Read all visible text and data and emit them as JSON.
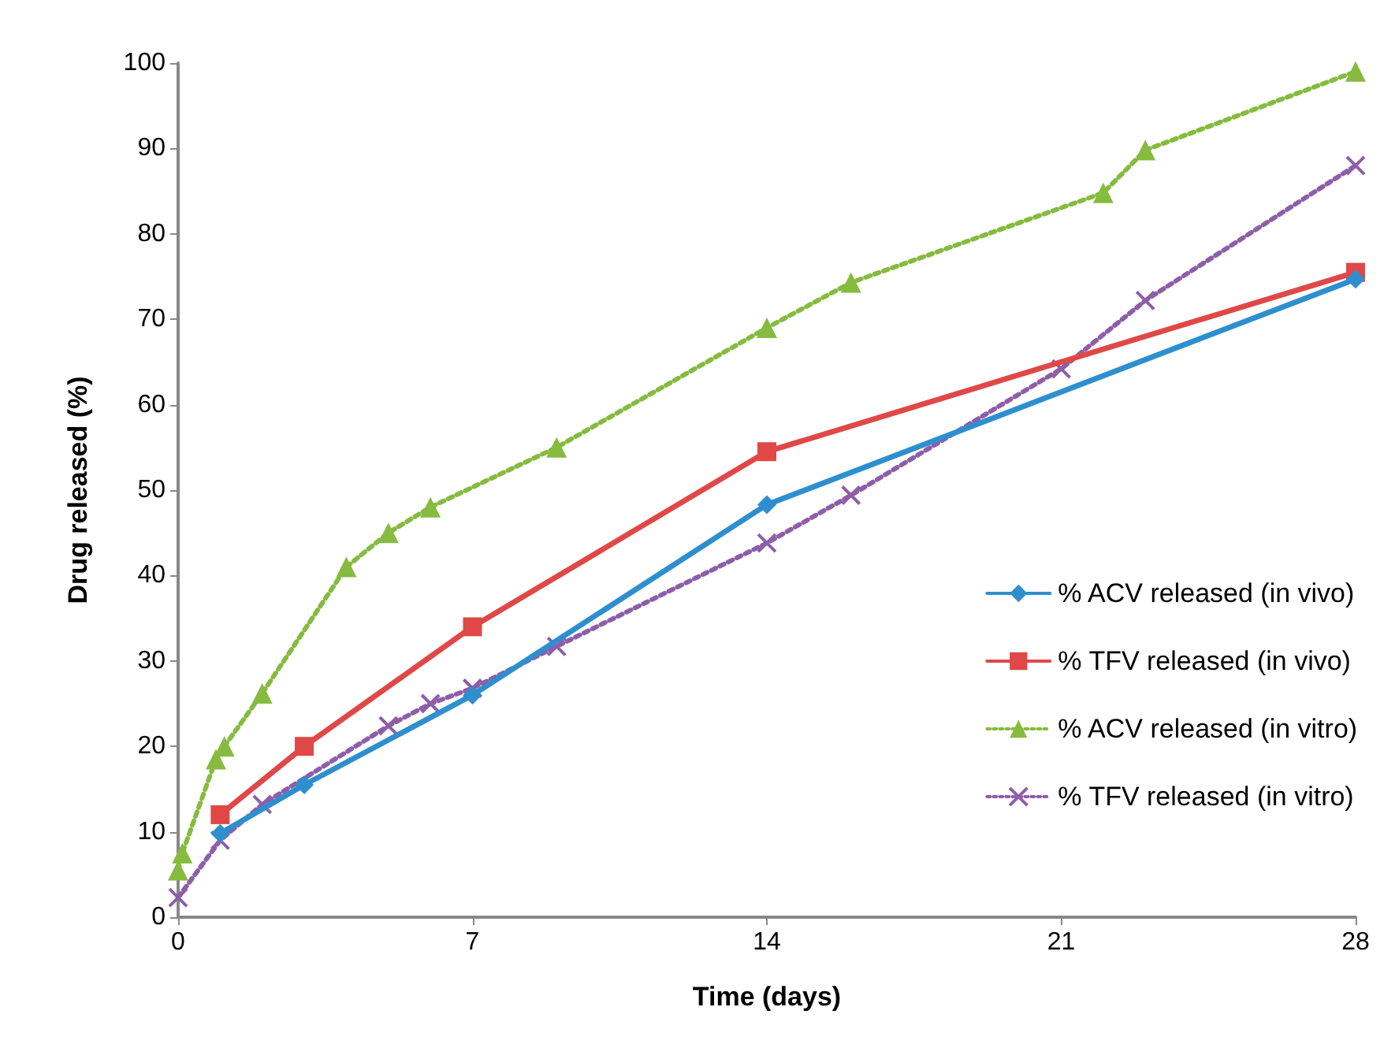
{
  "chart_data": {
    "type": "line",
    "xlabel": "Time (days)",
    "ylabel": "Drug released (%)",
    "xlim": [
      0,
      28
    ],
    "xticks": [
      0,
      7,
      14,
      21,
      28
    ],
    "ylim": [
      0,
      100
    ],
    "yticks": [
      0,
      10,
      20,
      30,
      40,
      50,
      60,
      70,
      80,
      90,
      100
    ],
    "grid": false,
    "legend": "right",
    "series": [
      {
        "name": "% ACV released (in vivo)",
        "color": "#2e8fcf",
        "marker": "diamond",
        "line_style": "solid",
        "x": [
          1,
          3,
          7,
          14,
          28
        ],
        "values": [
          9.8,
          15.5,
          26,
          48.3,
          74.7
        ]
      },
      {
        "name": "% TFV released (in vivo)",
        "color": "#e04848",
        "marker": "square",
        "line_style": "solid",
        "x": [
          1,
          3,
          7,
          14,
          28
        ],
        "values": [
          12,
          20,
          34,
          54.5,
          75.5
        ]
      },
      {
        "name": "% ACV released (in vitro)",
        "color": "#86bb3f",
        "marker": "triangle",
        "line_style": "dotted",
        "x": [
          0,
          0.1,
          0.9,
          1.1,
          2,
          4,
          5,
          6,
          9,
          14,
          16,
          22,
          23,
          28
        ],
        "values": [
          5.5,
          7.5,
          18.5,
          20,
          26.2,
          41,
          45,
          48,
          55,
          69,
          74.3,
          84.8,
          89.8,
          99
        ]
      },
      {
        "name": "% TFV released (in vitro)",
        "color": "#8e5ea8",
        "marker": "cross",
        "line_style": "dotted",
        "x": [
          0,
          1,
          2,
          5,
          6,
          7,
          9,
          14,
          16,
          21,
          23,
          28
        ],
        "values": [
          2.3,
          9,
          13.2,
          22.4,
          25,
          26.8,
          31.7,
          43.8,
          49.4,
          64.2,
          72.2,
          88
        ]
      }
    ]
  }
}
